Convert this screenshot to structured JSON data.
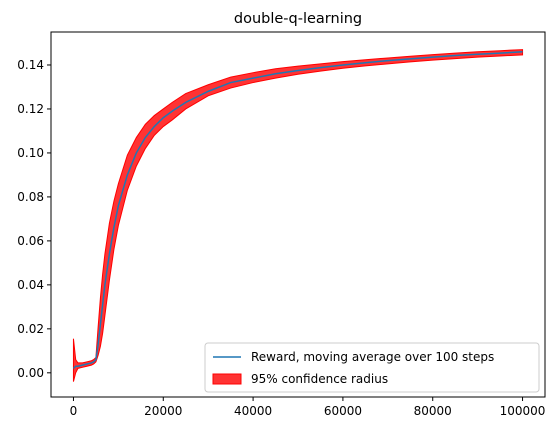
{
  "chart_data": {
    "type": "line",
    "title": "double-q-learning",
    "xlabel": "",
    "ylabel": "",
    "xlim": [
      -5000,
      105000
    ],
    "ylim": [
      -0.011,
      0.155
    ],
    "xticks": [
      0,
      20000,
      40000,
      60000,
      80000,
      100000
    ],
    "xtick_labels": [
      "0",
      "20000",
      "40000",
      "60000",
      "80000",
      "100000"
    ],
    "yticks": [
      0.0,
      0.02,
      0.04,
      0.06,
      0.08,
      0.1,
      0.12,
      0.14
    ],
    "ytick_labels": [
      "0.00",
      "0.02",
      "0.04",
      "0.06",
      "0.08",
      "0.10",
      "0.12",
      "0.14"
    ],
    "grid": false,
    "legend_position": "lower-right",
    "colors": {
      "line": "#1f77b4",
      "band": "#ff0000"
    },
    "series": [
      {
        "name": "Reward, moving average over 100 steps",
        "kind": "line",
        "x": [
          0,
          500,
          1000,
          2000,
          3000,
          4000,
          4500,
          5000,
          5500,
          6000,
          6500,
          7000,
          8000,
          9000,
          10000,
          12000,
          14000,
          16000,
          18000,
          20000,
          22000,
          25000,
          30000,
          35000,
          40000,
          45000,
          50000,
          55000,
          60000,
          65000,
          70000,
          75000,
          80000,
          85000,
          90000,
          95000,
          100000
        ],
        "y": [
          0.002,
          0.003,
          0.003,
          0.0035,
          0.004,
          0.0045,
          0.005,
          0.006,
          0.013,
          0.022,
          0.031,
          0.04,
          0.054,
          0.066,
          0.076,
          0.09,
          0.1,
          0.107,
          0.112,
          0.116,
          0.119,
          0.123,
          0.128,
          0.132,
          0.134,
          0.136,
          0.1375,
          0.1388,
          0.14,
          0.141,
          0.142,
          0.1428,
          0.1436,
          0.1443,
          0.1449,
          0.1454,
          0.146
        ]
      },
      {
        "name": "95% confidence radius",
        "kind": "band",
        "x": [
          0,
          500,
          1000,
          2000,
          3000,
          4000,
          4500,
          5000,
          5500,
          6000,
          6500,
          7000,
          8000,
          9000,
          10000,
          12000,
          14000,
          16000,
          18000,
          20000,
          22000,
          25000,
          30000,
          35000,
          40000,
          45000,
          50000,
          55000,
          60000,
          65000,
          70000,
          75000,
          80000,
          85000,
          90000,
          95000,
          100000
        ],
        "y_low": [
          -0.004,
          0.0,
          0.002,
          0.0025,
          0.003,
          0.0035,
          0.004,
          0.005,
          0.008,
          0.012,
          0.018,
          0.026,
          0.042,
          0.056,
          0.067,
          0.083,
          0.094,
          0.102,
          0.108,
          0.112,
          0.115,
          0.12,
          0.126,
          0.1295,
          0.132,
          0.134,
          0.1358,
          0.1372,
          0.1385,
          0.1396,
          0.1405,
          0.1414,
          0.1422,
          0.1429,
          0.1436,
          0.1441,
          0.1446
        ],
        "y_high": [
          0.0155,
          0.006,
          0.0045,
          0.0045,
          0.005,
          0.0055,
          0.006,
          0.007,
          0.021,
          0.034,
          0.045,
          0.054,
          0.068,
          0.078,
          0.086,
          0.099,
          0.107,
          0.113,
          0.117,
          0.12,
          0.123,
          0.127,
          0.131,
          0.1345,
          0.1365,
          0.1383,
          0.1395,
          0.1405,
          0.1415,
          0.1424,
          0.1432,
          0.144,
          0.1447,
          0.1454,
          0.146,
          0.1465,
          0.147
        ]
      }
    ]
  }
}
